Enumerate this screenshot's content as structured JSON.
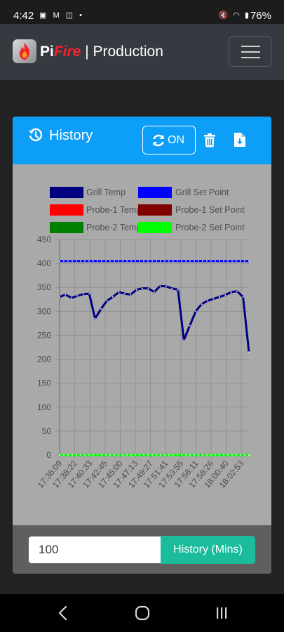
{
  "status_bar": {
    "time": "4:42",
    "notification_icons": "▣ M ◫ •",
    "system_icons": "🔇 ◠ ▮",
    "battery": "76%"
  },
  "navbar": {
    "brand_pi": "Pi",
    "brand_fire": "Fire",
    "brand_suffix": " | Production"
  },
  "card": {
    "title": "History",
    "refresh_label": "ON"
  },
  "footer": {
    "input_value": "100",
    "button_label": "History (Mins)"
  },
  "colors": {
    "header_blue": "#0d9ef7",
    "button_green": "#1abc9c",
    "grill_temp": "#000080",
    "grill_set_point": "#0000ff",
    "probe1_temp": "#ff0000",
    "probe1_set_point": "#800000",
    "probe2_temp": "#008000",
    "probe2_set_point": "#00ff00"
  },
  "chart_data": {
    "type": "line",
    "ylim": [
      0,
      450
    ],
    "yticks": [
      0,
      50,
      100,
      150,
      200,
      250,
      300,
      350,
      400,
      450
    ],
    "xtick_labels": [
      "17:36:09",
      "17:38:22",
      "17:40:33",
      "17:42:45",
      "17:45:00",
      "17:47:13",
      "17:49:27",
      "17:51:41",
      "17:53:55",
      "17:56:11",
      "17:58:26",
      "18:00:40",
      "18:02:53"
    ],
    "legend": [
      {
        "name": "Grill Temp",
        "color": "#000080"
      },
      {
        "name": "Grill Set Point",
        "color": "#0000ff"
      },
      {
        "name": "Probe-1 Temp",
        "color": "#ff0000"
      },
      {
        "name": "Probe-1 Set Point",
        "color": "#800000"
      },
      {
        "name": "Probe-2 Temp",
        "color": "#008000"
      },
      {
        "name": "Probe-2 Set Point",
        "color": "#00ff00"
      }
    ],
    "series": [
      {
        "name": "Grill Temp",
        "color": "#000080",
        "values": [
          330,
          335,
          328,
          332,
          336,
          337,
          285,
          305,
          322,
          330,
          340,
          337,
          335,
          345,
          348,
          348,
          340,
          353,
          352,
          348,
          345,
          240,
          270,
          300,
          315,
          322,
          326,
          330,
          334,
          340,
          342,
          330,
          215
        ]
      },
      {
        "name": "Grill Set Point",
        "color": "#0000ff",
        "values": [
          405,
          405
        ]
      },
      {
        "name": "Probe-1 Temp",
        "color": "#ff0000",
        "values": [
          0,
          0
        ]
      },
      {
        "name": "Probe-1 Set Point",
        "color": "#800000",
        "values": [
          0,
          0
        ]
      },
      {
        "name": "Probe-2 Temp",
        "color": "#008000",
        "values": [
          0,
          0
        ]
      },
      {
        "name": "Probe-2 Set Point",
        "color": "#00ff00",
        "values": [
          0,
          0
        ]
      }
    ]
  }
}
